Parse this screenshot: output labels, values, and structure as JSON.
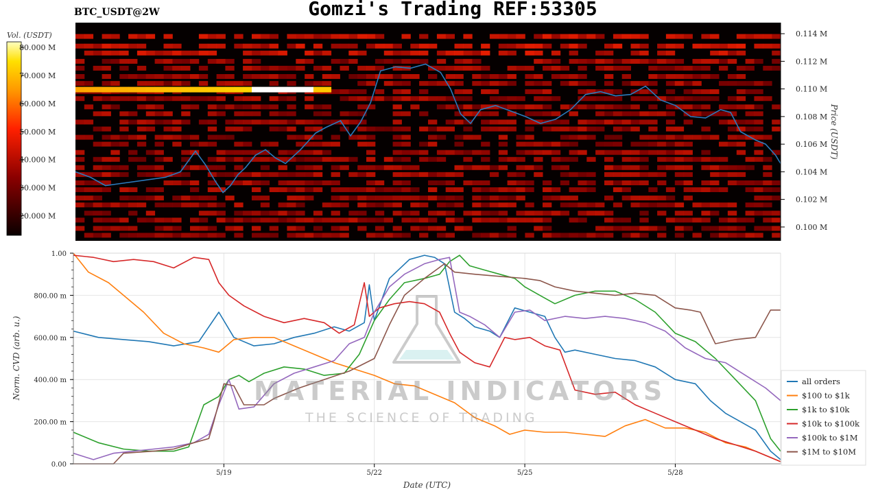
{
  "header": {
    "title": "Gomzi's Trading REF:53305",
    "symbol": "BTC_USDT@2W"
  },
  "watermark": {
    "brand": "MATERIAL INDICATORS",
    "tagline": "THE SCIENCE OF TRADING"
  },
  "colors": {
    "all": "#1f77b4",
    "r100_1k": "#ff7f0e",
    "r1k_10k": "#2ca02c",
    "r10k_100k": "#d62728",
    "r100k_1m": "#9467bd",
    "r1m_10m": "#8c564b"
  },
  "chart_data": [
    {
      "type": "heatmap",
      "colorbar": {
        "label": "Vol. (USDT)",
        "ticks": [
          "20.000 M",
          "30.000 M",
          "40.000 M",
          "50.000 M",
          "60.000 M",
          "70.000 M",
          "80.000 M"
        ],
        "values": [
          20,
          30,
          40,
          50,
          60,
          70,
          80
        ],
        "range": [
          13,
          82
        ],
        "colormap": "hot"
      },
      "price_axis": {
        "label": "Price (USDT)",
        "ticks": [
          "0.100 M",
          "0.102 M",
          "0.104 M",
          "0.106 M",
          "0.108 M",
          "0.110 M",
          "0.112 M",
          "0.114 M"
        ],
        "values": [
          100,
          102,
          104,
          106,
          108,
          110,
          112,
          114
        ],
        "range": [
          99.0,
          114.8
        ]
      },
      "x_range": [
        16.0,
        30.1
      ],
      "price_series": {
        "name": "price",
        "x": [
          16.0,
          16.3,
          16.6,
          17.0,
          17.4,
          17.8,
          18.1,
          18.4,
          18.6,
          18.8,
          18.95,
          19.1,
          19.25,
          19.4,
          19.6,
          19.8,
          20.0,
          20.2,
          20.5,
          20.8,
          21.0,
          21.3,
          21.5,
          21.7,
          21.9,
          22.1,
          22.4,
          22.7,
          23.0,
          23.3,
          23.5,
          23.7,
          23.9,
          24.1,
          24.4,
          24.7,
          25.0,
          25.3,
          25.6,
          25.9,
          26.2,
          26.5,
          26.8,
          27.1,
          27.4,
          27.7,
          28.0,
          28.3,
          28.6,
          28.9,
          29.1,
          29.3,
          29.6,
          29.8,
          30.0,
          30.1
        ],
        "y": [
          104.0,
          103.6,
          103.0,
          103.2,
          103.4,
          103.6,
          104.0,
          105.5,
          104.5,
          103.3,
          102.5,
          103.0,
          103.8,
          104.3,
          105.2,
          105.6,
          105.0,
          104.6,
          105.6,
          106.8,
          107.2,
          107.7,
          106.6,
          107.6,
          109.0,
          111.3,
          111.6,
          111.5,
          111.8,
          111.2,
          110.0,
          108.2,
          107.5,
          108.5,
          108.8,
          108.4,
          108.0,
          107.5,
          107.8,
          108.5,
          109.6,
          109.8,
          109.5,
          109.6,
          110.2,
          109.2,
          108.8,
          108.0,
          107.9,
          108.5,
          108.3,
          106.9,
          106.3,
          106.0,
          105.2,
          104.6
        ]
      },
      "bands": [
        113.8,
        113.1,
        112.6,
        112.0,
        111.5,
        110.9,
        110.4,
        109.8,
        109.3,
        108.7,
        108.2,
        107.6,
        107.1,
        106.5,
        106.0,
        105.4,
        104.9,
        104.3,
        103.8,
        103.2,
        102.7,
        102.1,
        101.6,
        101.0,
        100.5,
        99.9,
        99.4
      ]
    },
    {
      "type": "line",
      "ylabel": "Norm. CVD (arb. u.)",
      "xlabel": "Date (UTC)",
      "ylim": [
        0,
        1
      ],
      "yticks": [
        "0.00",
        "200.00 m",
        "400.00 m",
        "600.00 m",
        "800.00 m",
        "1.00"
      ],
      "ytick_values": [
        0,
        0.2,
        0.4,
        0.6,
        0.8,
        1.0
      ],
      "xticks": [
        "5/19",
        "5/22",
        "5/25",
        "5/28"
      ],
      "xtick_values": [
        19,
        22,
        25,
        28
      ],
      "x_range": [
        16.0,
        30.1
      ],
      "series": [
        {
          "name": "all orders",
          "color_key": "all",
          "x": [
            16.0,
            16.5,
            17.0,
            17.5,
            18.0,
            18.5,
            18.9,
            19.2,
            19.6,
            20.0,
            20.4,
            20.8,
            21.2,
            21.5,
            21.8,
            21.9,
            22.0,
            22.3,
            22.7,
            23.0,
            23.2,
            23.4,
            23.6,
            23.8,
            24.0,
            24.3,
            24.5,
            24.8,
            25.1,
            25.4,
            25.6,
            25.8,
            26.0,
            26.4,
            26.8,
            27.2,
            27.6,
            28.0,
            28.4,
            28.7,
            29.0,
            29.3,
            29.6,
            29.9,
            30.1
          ],
          "y": [
            0.63,
            0.6,
            0.59,
            0.58,
            0.56,
            0.58,
            0.72,
            0.6,
            0.56,
            0.57,
            0.6,
            0.62,
            0.65,
            0.63,
            0.67,
            0.85,
            0.68,
            0.88,
            0.97,
            0.99,
            0.98,
            0.95,
            0.72,
            0.69,
            0.65,
            0.63,
            0.6,
            0.74,
            0.72,
            0.7,
            0.6,
            0.53,
            0.54,
            0.52,
            0.5,
            0.49,
            0.46,
            0.4,
            0.38,
            0.3,
            0.24,
            0.2,
            0.16,
            0.06,
            0.02
          ]
        },
        {
          "name": "$100 to $1k",
          "color_key": "r100_1k",
          "x": [
            16.0,
            16.3,
            16.7,
            17.0,
            17.4,
            17.8,
            18.2,
            18.6,
            18.9,
            19.2,
            19.6,
            20.0,
            20.4,
            20.8,
            21.2,
            21.6,
            22.0,
            22.4,
            22.8,
            23.2,
            23.6,
            24.0,
            24.4,
            24.7,
            25.0,
            25.4,
            25.8,
            26.2,
            26.6,
            27.0,
            27.4,
            27.8,
            28.2,
            28.6,
            29.0,
            29.4,
            29.8,
            30.1
          ],
          "y": [
            1.0,
            0.91,
            0.86,
            0.8,
            0.72,
            0.62,
            0.57,
            0.55,
            0.53,
            0.59,
            0.6,
            0.6,
            0.56,
            0.52,
            0.48,
            0.45,
            0.42,
            0.38,
            0.37,
            0.33,
            0.29,
            0.22,
            0.18,
            0.14,
            0.16,
            0.15,
            0.15,
            0.14,
            0.13,
            0.18,
            0.21,
            0.17,
            0.17,
            0.15,
            0.1,
            0.08,
            0.04,
            0.01
          ]
        },
        {
          "name": "$1k to $10k",
          "color_key": "r1k_10k",
          "x": [
            16.0,
            16.5,
            17.0,
            17.5,
            18.0,
            18.3,
            18.6,
            18.9,
            19.1,
            19.3,
            19.5,
            19.8,
            20.2,
            20.6,
            21.0,
            21.4,
            21.7,
            22.0,
            22.3,
            22.6,
            23.0,
            23.3,
            23.5,
            23.7,
            23.9,
            24.2,
            24.5,
            24.8,
            25.0,
            25.3,
            25.6,
            26.0,
            26.4,
            26.8,
            27.2,
            27.6,
            28.0,
            28.4,
            28.8,
            29.2,
            29.6,
            29.9,
            30.1
          ],
          "y": [
            0.15,
            0.1,
            0.07,
            0.06,
            0.06,
            0.08,
            0.28,
            0.32,
            0.4,
            0.42,
            0.39,
            0.43,
            0.46,
            0.45,
            0.42,
            0.43,
            0.52,
            0.68,
            0.78,
            0.86,
            0.88,
            0.9,
            0.96,
            0.99,
            0.94,
            0.92,
            0.9,
            0.88,
            0.84,
            0.8,
            0.76,
            0.8,
            0.82,
            0.82,
            0.78,
            0.72,
            0.62,
            0.58,
            0.5,
            0.4,
            0.3,
            0.12,
            0.06
          ]
        },
        {
          "name": "$10k to $100k",
          "color_key": "r10k_100k",
          "x": [
            16.0,
            16.4,
            16.8,
            17.2,
            17.6,
            18.0,
            18.4,
            18.7,
            18.9,
            19.1,
            19.4,
            19.8,
            20.2,
            20.6,
            21.0,
            21.3,
            21.6,
            21.8,
            21.9,
            22.1,
            22.4,
            22.7,
            23.0,
            23.3,
            23.5,
            23.7,
            24.0,
            24.3,
            24.6,
            24.8,
            25.1,
            25.4,
            25.7,
            26.0,
            26.4,
            26.8,
            27.2,
            27.6,
            28.0,
            28.4,
            28.8,
            29.2,
            29.6,
            29.9,
            30.1
          ],
          "y": [
            0.99,
            0.98,
            0.96,
            0.97,
            0.96,
            0.93,
            0.98,
            0.97,
            0.86,
            0.8,
            0.75,
            0.7,
            0.67,
            0.69,
            0.67,
            0.62,
            0.66,
            0.86,
            0.7,
            0.74,
            0.76,
            0.77,
            0.76,
            0.72,
            0.62,
            0.53,
            0.48,
            0.46,
            0.6,
            0.59,
            0.6,
            0.56,
            0.54,
            0.35,
            0.33,
            0.34,
            0.28,
            0.24,
            0.2,
            0.16,
            0.12,
            0.09,
            0.06,
            0.03,
            0.01
          ]
        },
        {
          "name": "$100k to $1M",
          "color_key": "r100k_1m",
          "x": [
            16.0,
            16.4,
            16.8,
            17.2,
            17.6,
            18.0,
            18.4,
            18.7,
            18.9,
            19.1,
            19.3,
            19.6,
            20.0,
            20.4,
            20.8,
            21.2,
            21.5,
            21.8,
            22.0,
            22.3,
            22.6,
            23.0,
            23.3,
            23.5,
            23.7,
            23.9,
            24.2,
            24.5,
            24.8,
            25.1,
            25.4,
            25.8,
            26.2,
            26.6,
            27.0,
            27.4,
            27.8,
            28.2,
            28.6,
            29.0,
            29.4,
            29.8,
            30.1
          ],
          "y": [
            0.05,
            0.02,
            0.05,
            0.06,
            0.07,
            0.08,
            0.1,
            0.14,
            0.28,
            0.4,
            0.26,
            0.27,
            0.38,
            0.43,
            0.46,
            0.49,
            0.57,
            0.6,
            0.72,
            0.84,
            0.9,
            0.95,
            0.97,
            0.98,
            0.72,
            0.7,
            0.66,
            0.6,
            0.72,
            0.73,
            0.68,
            0.7,
            0.69,
            0.7,
            0.69,
            0.67,
            0.63,
            0.55,
            0.5,
            0.48,
            0.42,
            0.36,
            0.3
          ]
        },
        {
          "name": "$1M to $10M",
          "color_key": "r1m_10m",
          "x": [
            16.0,
            16.8,
            17.0,
            17.6,
            18.0,
            18.4,
            18.7,
            18.8,
            19.0,
            19.2,
            19.4,
            19.8,
            20.0,
            20.5,
            21.0,
            21.5,
            22.0,
            22.3,
            22.6,
            23.0,
            23.4,
            23.6,
            24.0,
            24.5,
            25.0,
            25.3,
            25.6,
            26.0,
            26.4,
            26.8,
            27.2,
            27.6,
            28.0,
            28.3,
            28.5,
            28.8,
            29.2,
            29.6,
            29.9,
            30.1
          ],
          "y": [
            0.0,
            0.0,
            0.05,
            0.06,
            0.07,
            0.1,
            0.12,
            0.2,
            0.38,
            0.37,
            0.28,
            0.28,
            0.31,
            0.36,
            0.4,
            0.44,
            0.5,
            0.66,
            0.8,
            0.88,
            0.95,
            0.91,
            0.9,
            0.89,
            0.88,
            0.87,
            0.84,
            0.82,
            0.81,
            0.8,
            0.81,
            0.8,
            0.74,
            0.73,
            0.72,
            0.57,
            0.59,
            0.6,
            0.73,
            0.73
          ]
        }
      ]
    }
  ]
}
